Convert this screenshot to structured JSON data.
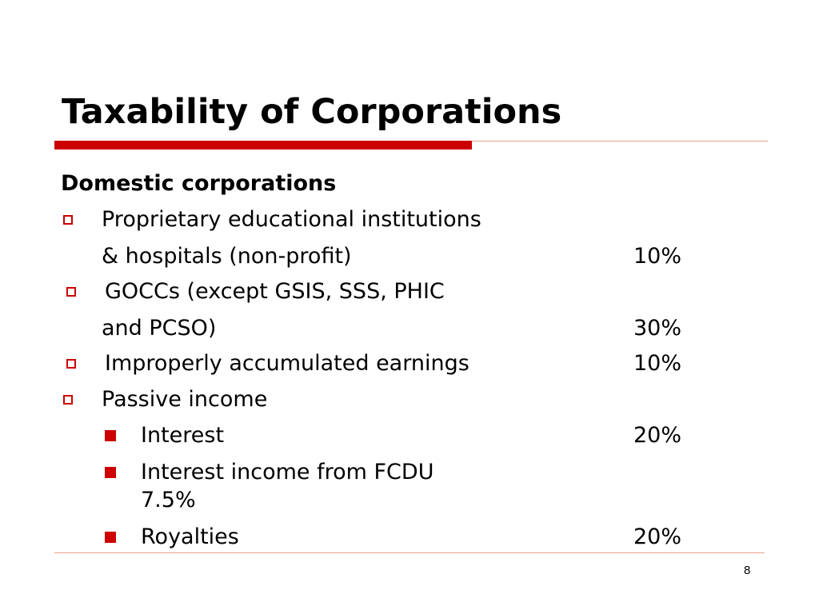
{
  "slide": {
    "title": "Taxability of Corporations",
    "page_number": "8",
    "colors": {
      "accent": "#cc0000",
      "rule_thin": "#e8a08a"
    }
  },
  "content": {
    "heading": "Domestic corporations",
    "items": [
      {
        "icon": "hollow-square-bullet-icon",
        "line1": "Proprietary educational institutions",
        "line2": "& hospitals (non-profit)",
        "rate": "10%"
      },
      {
        "icon": "hollow-square-bullet-icon",
        "line1": "GOCCs (except GSIS, SSS, PHIC",
        "line2": "and PCSO)",
        "rate": "30%"
      },
      {
        "icon": "hollow-square-bullet-icon",
        "line1": "Improperly accumulated earnings",
        "rate": "10%"
      },
      {
        "icon": "hollow-square-bullet-icon",
        "line1": "Passive income"
      }
    ],
    "subitems": [
      {
        "icon": "filled-square-bullet-icon",
        "label": "Interest",
        "rate": "20%"
      },
      {
        "icon": "filled-square-bullet-icon",
        "label": "Interest income from FCDU",
        "rate": "7.5%"
      },
      {
        "icon": "filled-square-bullet-icon",
        "label": "Royalties",
        "rate": "20%"
      }
    ]
  }
}
